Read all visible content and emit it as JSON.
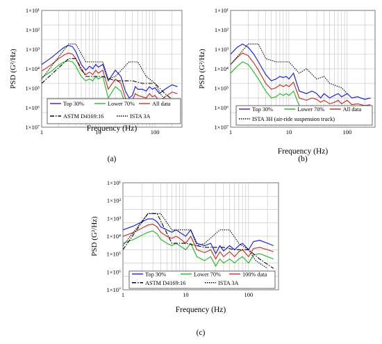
{
  "chart_data": [
    {
      "id": "a",
      "type": "line",
      "caption": "(a)",
      "ylabel": "PSD (G²/Hz)",
      "xlabel": "Frequency (Hz)",
      "x_scale": "log",
      "y_scale": "log",
      "xlim": [
        1,
        300
      ],
      "ylim": [
        1e-07,
        10
      ],
      "y_tick_labels": [
        "1×10¹",
        "1×10²",
        "1×10³",
        "1×10⁴",
        "1×10⁵",
        "1×10⁶",
        "1×10⁷"
      ],
      "x_tick_labels": [
        "1",
        "10",
        "100"
      ],
      "legend": {
        "rows": [
          [
            "Top 30%",
            "Lower 70%",
            "All data"
          ],
          [
            "ASTM D4169:16",
            "ISTA 3A"
          ]
        ]
      },
      "series": [
        {
          "name": "Top 30%",
          "color": "#2323c8",
          "style": "solid",
          "x": [
            1,
            1.5,
            2,
            2.5,
            3,
            3.5,
            4,
            5,
            6,
            7,
            8,
            9,
            10,
            12,
            15,
            20,
            25,
            30,
            35,
            40,
            45,
            50,
            60,
            70,
            80,
            90,
            100,
            120,
            150,
            200,
            250
          ],
          "y": [
            0.002,
            0.006,
            0.015,
            0.03,
            0.04,
            0.033,
            0.015,
            0.002,
            0.0008,
            0.0015,
            0.001,
            0.002,
            0.0013,
            0.002,
            0.00015,
            0.0008,
            0.0003,
            3e-05,
            1e-05,
            1.5e-05,
            6e-05,
            4e-05,
            4e-05,
            3e-05,
            6e-05,
            4e-05,
            5e-05,
            2e-05,
            4e-05,
            8e-05,
            6e-05
          ]
        },
        {
          "name": "Lower 70%",
          "color": "#2db82d",
          "style": "solid",
          "x": [
            1,
            1.5,
            2,
            2.5,
            3,
            3.5,
            4,
            5,
            6,
            7,
            8,
            9,
            10,
            12,
            15,
            20,
            25,
            30,
            35,
            40,
            45,
            50,
            60,
            70,
            80,
            90,
            100,
            120,
            150,
            200,
            250
          ],
          "y": [
            0.00025,
            0.0007,
            0.0018,
            0.003,
            0.0035,
            0.003,
            0.0015,
            0.0003,
            0.00015,
            0.0002,
            0.00015,
            0.0003,
            0.0002,
            0.0003,
            1e-05,
            6e-05,
            3e-05,
            4e-06,
            2e-06,
            3e-06,
            6e-06,
            5e-06,
            4e-06,
            3e-06,
            6e-06,
            4e-06,
            5e-06,
            2e-06,
            4e-06,
            8e-06,
            6e-06
          ]
        },
        {
          "name": "All data",
          "color": "#c0392b",
          "style": "solid",
          "x": [
            1,
            1.5,
            2,
            2.5,
            3,
            3.5,
            4,
            5,
            6,
            7,
            8,
            9,
            10,
            12,
            15,
            20,
            25,
            30,
            35,
            40,
            45,
            50,
            60,
            70,
            80,
            90,
            100,
            120,
            150,
            200,
            250
          ],
          "y": [
            0.0007,
            0.002,
            0.005,
            0.009,
            0.012,
            0.01,
            0.005,
            0.0008,
            0.0004,
            0.0006,
            0.0004,
            0.0008,
            0.0005,
            0.0008,
            4e-05,
            0.0002,
            0.0001,
            1e-05,
            5e-06,
            7e-06,
            2e-05,
            1.5e-05,
            1.2e-05,
            1e-05,
            2e-05,
            1.2e-05,
            1.5e-05,
            6e-06,
            1.2e-05,
            2.5e-05,
            2e-05
          ]
        },
        {
          "name": "ASTM D4169:16",
          "color": "#000000",
          "style": "dashdot",
          "x": [
            1,
            3,
            4,
            6,
            12,
            20,
            40,
            60,
            100,
            150,
            200,
            250
          ],
          "y": [
            0.0001,
            0.005,
            0.005,
            0.0003,
            0.0003,
            0.00015,
            0.00015,
            0.0001,
            0.0001,
            2e-05,
            8e-06,
            4e-06
          ]
        },
        {
          "name": "ISTA 3A",
          "color": "#000000",
          "style": "dotted",
          "x": [
            1,
            3,
            4,
            6,
            12,
            15,
            20,
            35,
            50,
            70,
            100,
            130,
            200
          ],
          "y": [
            0.0002,
            0.05,
            0.05,
            0.003,
            0.003,
            0.0002,
            0.0003,
            0.003,
            0.003,
            0.0003,
            0.0001,
            1.5e-05,
            4e-06
          ]
        }
      ]
    },
    {
      "id": "b",
      "type": "line",
      "caption": "(b)",
      "ylabel": "PSD (G²/Hz)",
      "xlabel": "Frequency (Hz)",
      "x_scale": "log",
      "y_scale": "log",
      "xlim": [
        1,
        300
      ],
      "ylim": [
        1e-07,
        10
      ],
      "y_tick_labels": [
        "1×10¹",
        "1×10²",
        "1×10³",
        "1×10⁴",
        "1×10⁵",
        "1×10⁶",
        "1×10⁷"
      ],
      "x_tick_labels": [
        "1",
        "10",
        "100"
      ],
      "legend": {
        "rows": [
          [
            "Top 30%",
            "Lower 70%",
            "All data"
          ],
          [
            "ISTA 3H (air-ride suspension truck)"
          ]
        ]
      },
      "series": [
        {
          "name": "Top 30%",
          "color": "#2323c8",
          "style": "solid",
          "x": [
            1,
            1.3,
            1.6,
            2,
            2.5,
            3,
            4,
            5,
            6,
            7,
            8,
            9,
            10,
            12,
            15,
            20,
            25,
            30,
            35,
            40,
            50,
            60,
            70,
            80,
            100,
            120,
            150,
            200,
            250
          ],
          "y": [
            0.01,
            0.03,
            0.05,
            0.03,
            0.01,
            0.003,
            0.0004,
            0.00015,
            0.0002,
            0.0003,
            0.00025,
            0.0003,
            0.0002,
            0.0005,
            3e-05,
            2e-05,
            3e-05,
            2e-05,
            1e-05,
            2e-05,
            1e-05,
            1.5e-05,
            2e-05,
            1.2e-05,
            2e-05,
            1e-05,
            1.2e-05,
            8e-06,
            1e-05
          ]
        },
        {
          "name": "Lower 70%",
          "color": "#2db82d",
          "style": "solid",
          "x": [
            1,
            1.3,
            1.6,
            2,
            2.5,
            3,
            4,
            5,
            6,
            7,
            8,
            9,
            10,
            12,
            15,
            20,
            25,
            30,
            35,
            40,
            50,
            60,
            70,
            80,
            100,
            120,
            150,
            200,
            250
          ],
          "y": [
            0.0005,
            0.0015,
            0.003,
            0.002,
            0.0006,
            0.0002,
            3e-05,
            1e-05,
            1.2e-05,
            2e-05,
            1.5e-05,
            2e-05,
            1.5e-05,
            3e-05,
            3e-06,
            2e-06,
            3e-06,
            2.5e-06,
            1.5e-06,
            2e-06,
            1.2e-06,
            1.5e-06,
            2e-06,
            1.2e-06,
            2e-06,
            1e-06,
            1.2e-06,
            9e-07,
            1e-06
          ]
        },
        {
          "name": "All data",
          "color": "#c0392b",
          "style": "solid",
          "x": [
            1,
            1.3,
            1.6,
            2,
            2.5,
            3,
            4,
            5,
            6,
            7,
            8,
            9,
            10,
            12,
            15,
            20,
            25,
            30,
            35,
            40,
            50,
            60,
            70,
            80,
            100,
            120,
            150,
            200,
            250
          ],
          "y": [
            0.002,
            0.006,
            0.012,
            0.008,
            0.0025,
            0.0008,
            0.0001,
            4e-05,
            5e-05,
            8e-05,
            6e-05,
            8e-05,
            6e-05,
            0.00012,
            1e-05,
            7e-06,
            1e-05,
            8e-06,
            5e-06,
            7e-06,
            4e-06,
            5e-06,
            7e-06,
            4e-06,
            7e-06,
            3.5e-06,
            4e-06,
            3e-06,
            3.5e-06
          ]
        },
        {
          "name": "ISTA 3H (air-ride suspension truck)",
          "color": "#000000",
          "style": "dotted",
          "x": [
            1,
            2,
            3,
            4,
            6,
            10,
            15,
            20,
            30,
            40,
            50,
            80,
            100
          ],
          "y": [
            0.002,
            0.05,
            0.05,
            0.005,
            0.003,
            0.003,
            0.0005,
            0.001,
            0.0002,
            0.0003,
            0.0001,
            5e-05,
            2e-05
          ]
        }
      ]
    },
    {
      "id": "c",
      "type": "line",
      "caption": "(c)",
      "ylabel": "PSD (G²/Hz)",
      "xlabel": "Frequency (Hz)",
      "x_scale": "log",
      "y_scale": "log",
      "xlim": [
        1,
        300
      ],
      "ylim": [
        1e-07,
        10
      ],
      "y_tick_labels": [
        "1×10¹",
        "1×10²",
        "1×10³",
        "1×10⁴",
        "1×10⁵",
        "1×10⁶",
        "1×10⁷"
      ],
      "x_tick_labels": [
        "1",
        "10",
        "100"
      ],
      "legend": {
        "rows": [
          [
            "Top 30%",
            "Lower 70%",
            "100% data"
          ],
          [
            "ASTM D4169:16",
            "ISTA 3A"
          ]
        ]
      },
      "series": [
        {
          "name": "Top 30%",
          "color": "#2323c8",
          "style": "solid",
          "x": [
            1,
            1.5,
            2,
            2.5,
            3,
            3.5,
            4,
            5,
            6,
            7,
            8,
            10,
            12,
            15,
            20,
            25,
            30,
            35,
            40,
            50,
            60,
            70,
            80,
            100,
            120,
            150,
            200,
            250
          ],
          "y": [
            0.003,
            0.006,
            0.012,
            0.02,
            0.02,
            0.012,
            0.005,
            0.003,
            0.002,
            0.003,
            0.002,
            0.001,
            0.003,
            0.0003,
            0.0002,
            0.0003,
            5e-05,
            0.0002,
            8e-05,
            0.0002,
            0.0001,
            0.0002,
            0.0003,
            0.0001,
            0.0004,
            0.0005,
            0.0003,
            0.0002
          ]
        },
        {
          "name": "Lower 70%",
          "color": "#2db82d",
          "style": "solid",
          "x": [
            1,
            1.5,
            2,
            2.5,
            3,
            3.5,
            4,
            5,
            6,
            7,
            8,
            10,
            12,
            15,
            20,
            25,
            30,
            35,
            40,
            50,
            60,
            70,
            80,
            100,
            120,
            150,
            200,
            250
          ],
          "y": [
            0.0003,
            0.0006,
            0.0012,
            0.002,
            0.0025,
            0.0015,
            0.0006,
            0.0003,
            0.0002,
            0.0003,
            0.0002,
            0.0001,
            0.0003,
            3e-05,
            1.5e-05,
            3e-05,
            6e-06,
            2e-05,
            1e-05,
            2e-05,
            1e-05,
            2e-05,
            3e-05,
            1e-05,
            4e-05,
            5e-05,
            3e-05,
            2e-05
          ]
        },
        {
          "name": "100% data",
          "color": "#c0392b",
          "style": "solid",
          "x": [
            1,
            1.5,
            2,
            2.5,
            3,
            3.5,
            4,
            5,
            6,
            7,
            8,
            10,
            12,
            15,
            20,
            25,
            30,
            35,
            40,
            50,
            60,
            70,
            80,
            100,
            120,
            150,
            200,
            250
          ],
          "y": [
            0.001,
            0.002,
            0.004,
            0.007,
            0.008,
            0.005,
            0.002,
            0.001,
            0.0007,
            0.001,
            0.0007,
            0.0003,
            0.001,
            0.0001,
            6e-05,
            0.0001,
            2e-05,
            7e-05,
            3e-05,
            7e-05,
            3e-05,
            7e-05,
            0.0001,
            3e-05,
            0.00012,
            0.00015,
            0.0001,
            7e-05
          ]
        },
        {
          "name": "ASTM D4169:16",
          "color": "#000000",
          "style": "dashdot",
          "x": [
            1,
            2.5,
            3.5,
            6,
            10,
            20,
            40,
            60,
            100,
            150,
            200,
            250
          ],
          "y": [
            0.0001,
            0.05,
            0.05,
            0.0003,
            0.0003,
            0.00015,
            0.00015,
            0.0001,
            0.0001,
            2e-05,
            8e-06,
            4e-06
          ]
        },
        {
          "name": "ISTA 3A",
          "color": "#000000",
          "style": "dotted",
          "x": [
            1,
            2.5,
            4,
            6,
            12,
            15,
            20,
            35,
            50,
            70,
            100,
            130,
            200
          ],
          "y": [
            0.0002,
            0.05,
            0.05,
            0.003,
            0.003,
            0.0002,
            0.0003,
            0.003,
            0.003,
            0.0003,
            0.0001,
            1.5e-05,
            4e-06
          ]
        }
      ]
    }
  ]
}
